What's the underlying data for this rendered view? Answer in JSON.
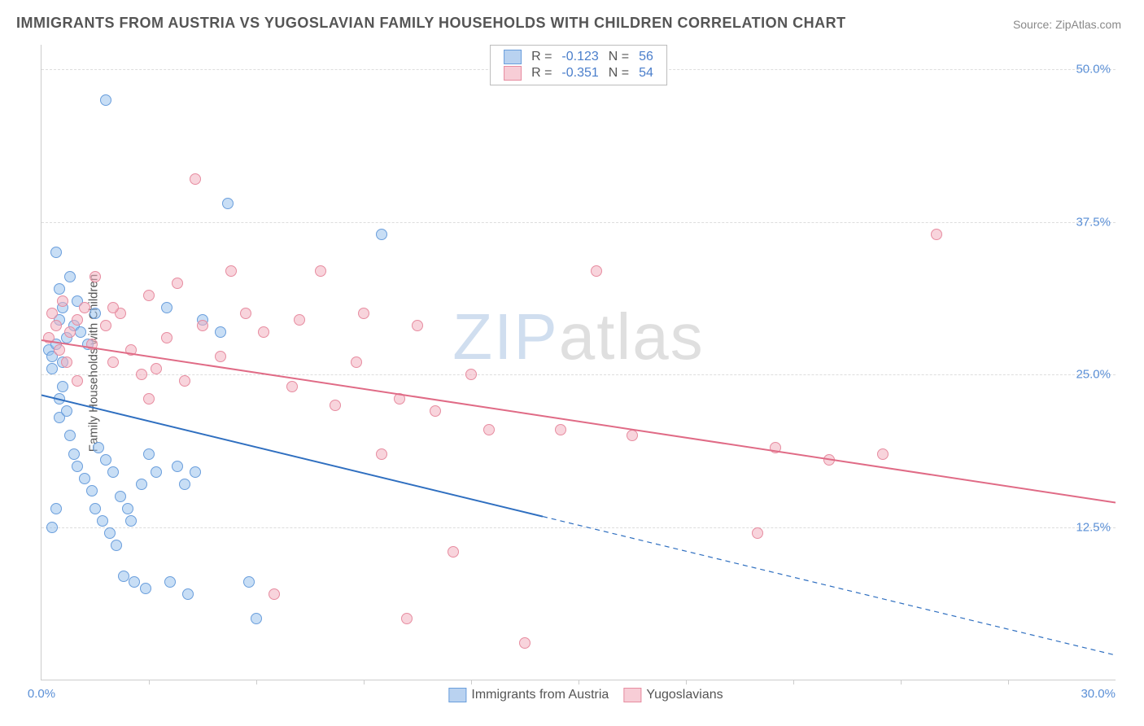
{
  "title": "IMMIGRANTS FROM AUSTRIA VS YUGOSLAVIAN FAMILY HOUSEHOLDS WITH CHILDREN CORRELATION CHART",
  "source": "Source: ZipAtlas.com",
  "watermark": {
    "part1": "ZIP",
    "part2": "atlas"
  },
  "chart": {
    "type": "scatter",
    "ylabel": "Family Households with Children",
    "xlim": [
      0.0,
      30.0
    ],
    "ylim": [
      0.0,
      52.0
    ],
    "x_ticks": [
      0.0,
      30.0
    ],
    "x_tick_labels": [
      "0.0%",
      "30.0%"
    ],
    "x_minor_tick_count": 9,
    "y_ticks": [
      12.5,
      25.0,
      37.5,
      50.0
    ],
    "y_tick_labels": [
      "12.5%",
      "25.0%",
      "37.5%",
      "50.0%"
    ],
    "grid_color": "#dddddd",
    "tick_label_color": "#5a8fd6",
    "axis_color": "#cccccc",
    "background_color": "#ffffff",
    "point_radius": 7,
    "point_border_width": 1.5,
    "title_fontsize": 18,
    "label_fontsize": 15,
    "legend_top": {
      "rows": [
        {
          "swatch_fill": "#b9d2f0",
          "swatch_border": "#6a9edc",
          "r_label": "R =",
          "r_value": "-0.123",
          "n_label": "N =",
          "n_value": "56"
        },
        {
          "swatch_fill": "#f7cdd6",
          "swatch_border": "#e78ca0",
          "r_label": "R =",
          "r_value": "-0.351",
          "n_label": "N =",
          "n_value": "54"
        }
      ]
    },
    "legend_bottom": {
      "items": [
        {
          "swatch_fill": "#b9d2f0",
          "swatch_border": "#6a9edc",
          "label": "Immigrants from Austria"
        },
        {
          "swatch_fill": "#f7cdd6",
          "swatch_border": "#e78ca0",
          "label": "Yugoslavians"
        }
      ]
    },
    "series": [
      {
        "name": "Immigrants from Austria",
        "fill": "rgba(154,195,237,0.55)",
        "stroke": "#6a9edc",
        "regression": {
          "color": "#2f6fc0",
          "width": 2,
          "solid_from_x": 0.0,
          "solid_to_x": 14.0,
          "dash_to_x": 30.0,
          "y_at_x0": 23.3,
          "y_at_x30": 2.0
        },
        "points": [
          [
            0.2,
            27.0
          ],
          [
            0.3,
            26.5
          ],
          [
            0.3,
            25.5
          ],
          [
            0.4,
            27.5
          ],
          [
            0.4,
            35.0
          ],
          [
            0.5,
            32.0
          ],
          [
            0.5,
            23.0
          ],
          [
            0.5,
            21.5
          ],
          [
            0.5,
            29.5
          ],
          [
            0.6,
            26.0
          ],
          [
            0.6,
            24.0
          ],
          [
            0.6,
            30.5
          ],
          [
            0.7,
            28.0
          ],
          [
            0.7,
            22.0
          ],
          [
            0.8,
            33.0
          ],
          [
            0.8,
            20.0
          ],
          [
            0.9,
            29.0
          ],
          [
            0.9,
            18.5
          ],
          [
            1.0,
            31.0
          ],
          [
            1.0,
            17.5
          ],
          [
            1.1,
            28.5
          ],
          [
            1.2,
            16.5
          ],
          [
            1.3,
            27.5
          ],
          [
            1.4,
            15.5
          ],
          [
            1.5,
            30.0
          ],
          [
            1.5,
            14.0
          ],
          [
            1.6,
            19.0
          ],
          [
            1.7,
            13.0
          ],
          [
            1.8,
            18.0
          ],
          [
            1.8,
            47.5
          ],
          [
            1.9,
            12.0
          ],
          [
            2.0,
            17.0
          ],
          [
            2.1,
            11.0
          ],
          [
            2.2,
            15.0
          ],
          [
            2.3,
            8.5
          ],
          [
            2.4,
            14.0
          ],
          [
            2.5,
            13.0
          ],
          [
            2.6,
            8.0
          ],
          [
            2.8,
            16.0
          ],
          [
            2.9,
            7.5
          ],
          [
            3.0,
            18.5
          ],
          [
            3.2,
            17.0
          ],
          [
            3.5,
            30.5
          ],
          [
            3.6,
            8.0
          ],
          [
            3.8,
            17.5
          ],
          [
            4.0,
            16.0
          ],
          [
            4.1,
            7.0
          ],
          [
            4.3,
            17.0
          ],
          [
            4.5,
            29.5
          ],
          [
            5.0,
            28.5
          ],
          [
            5.2,
            39.0
          ],
          [
            5.8,
            8.0
          ],
          [
            6.0,
            5.0
          ],
          [
            9.5,
            36.5
          ],
          [
            0.4,
            14.0
          ],
          [
            0.3,
            12.5
          ]
        ]
      },
      {
        "name": "Yugoslavians",
        "fill": "rgba(243,176,191,0.55)",
        "stroke": "#e78ca0",
        "regression": {
          "color": "#e06b86",
          "width": 2,
          "solid_from_x": 0.0,
          "solid_to_x": 30.0,
          "dash_to_x": 30.0,
          "y_at_x0": 27.8,
          "y_at_x30": 14.5
        },
        "points": [
          [
            0.2,
            28.0
          ],
          [
            0.3,
            30.0
          ],
          [
            0.4,
            29.0
          ],
          [
            0.5,
            27.0
          ],
          [
            0.6,
            31.0
          ],
          [
            0.8,
            28.5
          ],
          [
            1.0,
            29.5
          ],
          [
            1.2,
            30.5
          ],
          [
            1.4,
            27.5
          ],
          [
            1.5,
            33.0
          ],
          [
            1.8,
            29.0
          ],
          [
            2.0,
            26.0
          ],
          [
            2.2,
            30.0
          ],
          [
            2.5,
            27.0
          ],
          [
            2.8,
            25.0
          ],
          [
            3.0,
            31.5
          ],
          [
            3.2,
            25.5
          ],
          [
            3.5,
            28.0
          ],
          [
            3.8,
            32.5
          ],
          [
            4.0,
            24.5
          ],
          [
            4.3,
            41.0
          ],
          [
            4.5,
            29.0
          ],
          [
            5.0,
            26.5
          ],
          [
            5.3,
            33.5
          ],
          [
            5.7,
            30.0
          ],
          [
            6.2,
            28.5
          ],
          [
            6.5,
            7.0
          ],
          [
            7.0,
            24.0
          ],
          [
            7.2,
            29.5
          ],
          [
            7.8,
            33.5
          ],
          [
            8.2,
            22.5
          ],
          [
            8.8,
            26.0
          ],
          [
            9.0,
            30.0
          ],
          [
            9.5,
            18.5
          ],
          [
            10.0,
            23.0
          ],
          [
            10.2,
            5.0
          ],
          [
            10.5,
            29.0
          ],
          [
            11.0,
            22.0
          ],
          [
            11.5,
            10.5
          ],
          [
            12.0,
            25.0
          ],
          [
            12.5,
            20.5
          ],
          [
            13.5,
            3.0
          ],
          [
            14.5,
            20.5
          ],
          [
            15.5,
            33.5
          ],
          [
            16.5,
            20.0
          ],
          [
            20.0,
            12.0
          ],
          [
            20.5,
            19.0
          ],
          [
            22.0,
            18.0
          ],
          [
            23.5,
            18.5
          ],
          [
            25.0,
            36.5
          ],
          [
            0.7,
            26.0
          ],
          [
            1.0,
            24.5
          ],
          [
            2.0,
            30.5
          ],
          [
            3.0,
            23.0
          ]
        ]
      }
    ]
  }
}
